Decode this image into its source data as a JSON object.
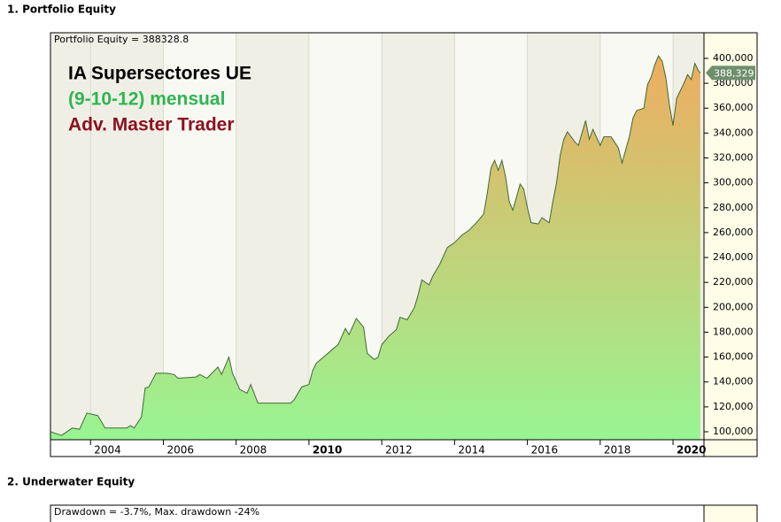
{
  "sections": [
    {
      "heading": "1. Portfolio Equity"
    },
    {
      "heading": "2. Underwater Equity",
      "legend": "Drawdown = -3.7%, Max. drawdown -24%"
    }
  ],
  "chart_data": {
    "type": "area",
    "legend": "Portfolio Equity = 388328.8",
    "annotations": [
      "IA Supersectores UE",
      "(9-10-12) mensual",
      "Adv. Master Trader"
    ],
    "annotation_colors": [
      "#000000",
      "#2fb552",
      "#8b1020"
    ],
    "color": "#3d6b35",
    "fill_colors": [
      "#98f592",
      "#f3a85c"
    ],
    "x": [
      2002.9,
      2003.2,
      2003.5,
      2003.7,
      2003.9,
      2004.2,
      2004.4,
      2005.0,
      2005.1,
      2005.2,
      2005.4,
      2005.5,
      2005.6,
      2005.8,
      2006.1,
      2006.3,
      2006.4,
      2006.9,
      2007.0,
      2007.2,
      2007.5,
      2007.6,
      2007.8,
      2007.9,
      2008.1,
      2008.3,
      2008.4,
      2008.6,
      2009.5,
      2009.6,
      2009.8,
      2010.0,
      2010.1,
      2010.2,
      2010.4,
      2010.6,
      2010.8,
      2011.0,
      2011.1,
      2011.3,
      2011.5,
      2011.6,
      2011.8,
      2011.9,
      2012.0,
      2012.2,
      2012.4,
      2012.5,
      2012.7,
      2012.9,
      2013.0,
      2013.1,
      2013.3,
      2013.4,
      2013.6,
      2013.8,
      2014.0,
      2014.2,
      2014.4,
      2014.6,
      2014.8,
      2014.9,
      2015.0,
      2015.1,
      2015.2,
      2015.3,
      2015.4,
      2015.5,
      2015.6,
      2015.8,
      2015.9,
      2016.0,
      2016.1,
      2016.3,
      2016.4,
      2016.6,
      2016.7,
      2016.8,
      2016.9,
      2017.0,
      2017.1,
      2017.3,
      2017.4,
      2017.6,
      2017.7,
      2017.8,
      2018.0,
      2018.1,
      2018.3,
      2018.5,
      2018.6,
      2018.8,
      2018.9,
      2019.0,
      2019.2,
      2019.3,
      2019.4,
      2019.5,
      2019.6,
      2019.7,
      2019.8,
      2019.9,
      2020.0,
      2020.1,
      2020.3,
      2020.4,
      2020.5,
      2020.6,
      2020.7,
      2020.75
    ],
    "values": [
      100000,
      97000,
      103000,
      102000,
      115000,
      113000,
      103000,
      103000,
      105000,
      103000,
      112000,
      135000,
      136000,
      147000,
      147000,
      146000,
      143000,
      144000,
      146000,
      143000,
      152000,
      146000,
      160000,
      147000,
      134000,
      131000,
      138000,
      123000,
      123000,
      126000,
      136000,
      138000,
      149000,
      155000,
      160000,
      165000,
      170000,
      183000,
      178000,
      191000,
      184000,
      163000,
      158000,
      160000,
      170000,
      177000,
      182000,
      192000,
      190000,
      200000,
      210000,
      222000,
      218000,
      225000,
      235000,
      248000,
      252000,
      258000,
      262000,
      268000,
      275000,
      292000,
      312000,
      318000,
      310000,
      318000,
      305000,
      285000,
      278000,
      299000,
      295000,
      280000,
      268000,
      267000,
      272000,
      268000,
      285000,
      300000,
      322000,
      335000,
      341000,
      333000,
      330000,
      350000,
      335000,
      343000,
      330000,
      337000,
      337000,
      328000,
      316000,
      337000,
      352000,
      358000,
      360000,
      379000,
      385000,
      395000,
      402000,
      398000,
      385000,
      363000,
      346000,
      368000,
      380000,
      387000,
      383000,
      396000,
      390000,
      388328.8
    ],
    "last_value": 388328.8,
    "last_value_label": "388,329",
    "xlim": [
      2002.9,
      2020.85
    ],
    "xticks": [
      2004,
      2006,
      2008,
      2010,
      2012,
      2014,
      2016,
      2018,
      2020
    ],
    "ylim": [
      93600,
      420600
    ],
    "yticks": [
      {
        "value": 100000,
        "label": "100,000"
      },
      {
        "value": 120000,
        "label": "120,000"
      },
      {
        "value": 140000,
        "label": "140,000"
      },
      {
        "value": 160000,
        "label": "160,000"
      },
      {
        "value": 180000,
        "label": "180,000"
      },
      {
        "value": 200000,
        "label": "200,000"
      },
      {
        "value": 220000,
        "label": "220,000"
      },
      {
        "value": 240000,
        "label": "240,000"
      },
      {
        "value": 260000,
        "label": "260,000"
      },
      {
        "value": 280000,
        "label": "280,000"
      },
      {
        "value": 300000,
        "label": "300,000"
      },
      {
        "value": 320000,
        "label": "320,000"
      },
      {
        "value": 340000,
        "label": "340,000"
      },
      {
        "value": 360000,
        "label": "360,000"
      },
      {
        "value": 380000,
        "label": "380,000"
      },
      {
        "value": 400000,
        "label": "400,000"
      }
    ]
  }
}
